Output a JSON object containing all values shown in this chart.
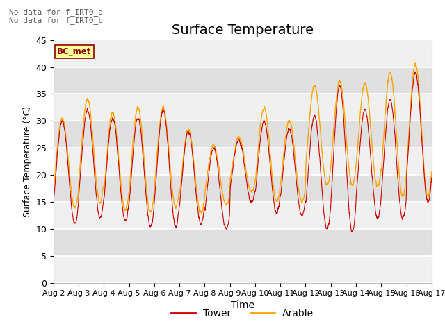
{
  "title": "Surface Temperature",
  "xlabel": "Time",
  "ylabel": "Surface Temperature (°C)",
  "ylim": [
    0,
    45
  ],
  "yticks": [
    0,
    5,
    10,
    15,
    20,
    25,
    30,
    35,
    40,
    45
  ],
  "x_tick_labels": [
    "Aug 2",
    "Aug 3",
    "Aug 4",
    "Aug 5",
    "Aug 6",
    "Aug 7",
    "Aug 8",
    "Aug 9",
    "Aug 10",
    "Aug 11",
    "Aug 12",
    "Aug 13",
    "Aug 14",
    "Aug 15",
    "Aug 16",
    "Aug 17"
  ],
  "annotation_text": "No data for f_IRT0_a\nNo data for f_IRT0_b",
  "bc_met_label": "BC_met",
  "tower_color": "#cc0000",
  "arable_color": "#ffa500",
  "bc_met_box_color": "#ffff99",
  "bc_met_border_color": "#8b0000",
  "bc_met_text_color": "#8b0000",
  "legend_tower": "Tower",
  "legend_arable": "Arable",
  "n_days": 15,
  "points_per_day": 288,
  "figsize": [
    6.4,
    4.8
  ],
  "dpi": 100,
  "bg_color_light": "#f0f0f0",
  "bg_color_dark": "#e0e0e0",
  "grid_color": "#ffffff"
}
